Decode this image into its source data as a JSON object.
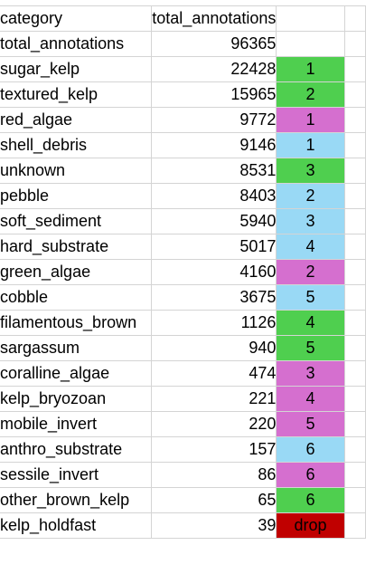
{
  "columns": {
    "category": "category",
    "total": "total_annotations"
  },
  "colors": {
    "green": "#4fcf4f",
    "blue": "#99d9f5",
    "pink": "#d56fcf",
    "red": "#c00000",
    "white": "#ffffff"
  },
  "rows": [
    {
      "category": "total_annotations",
      "total": "96365",
      "rank": "",
      "color": "white"
    },
    {
      "category": "sugar_kelp",
      "total": "22428",
      "rank": "1",
      "color": "green"
    },
    {
      "category": "textured_kelp",
      "total": "15965",
      "rank": "2",
      "color": "green"
    },
    {
      "category": "red_algae",
      "total": "9772",
      "rank": "1",
      "color": "pink"
    },
    {
      "category": "shell_debris",
      "total": "9146",
      "rank": "1",
      "color": "blue"
    },
    {
      "category": "unknown",
      "total": "8531",
      "rank": "3",
      "color": "green"
    },
    {
      "category": "pebble",
      "total": "8403",
      "rank": "2",
      "color": "blue"
    },
    {
      "category": "soft_sediment",
      "total": "5940",
      "rank": "3",
      "color": "blue"
    },
    {
      "category": "hard_substrate",
      "total": "5017",
      "rank": "4",
      "color": "blue"
    },
    {
      "category": "green_algae",
      "total": "4160",
      "rank": "2",
      "color": "pink"
    },
    {
      "category": "cobble",
      "total": "3675",
      "rank": "5",
      "color": "blue"
    },
    {
      "category": "filamentous_brown",
      "total": "1126",
      "rank": "4",
      "color": "green"
    },
    {
      "category": "sargassum",
      "total": "940",
      "rank": "5",
      "color": "green"
    },
    {
      "category": "coralline_algae",
      "total": "474",
      "rank": "3",
      "color": "pink"
    },
    {
      "category": "kelp_bryozoan",
      "total": "221",
      "rank": "4",
      "color": "pink"
    },
    {
      "category": "mobile_invert",
      "total": "220",
      "rank": "5",
      "color": "pink"
    },
    {
      "category": "anthro_substrate",
      "total": "157",
      "rank": "6",
      "color": "blue"
    },
    {
      "category": "sessile_invert",
      "total": "86",
      "rank": "6",
      "color": "pink"
    },
    {
      "category": "other_brown_kelp",
      "total": "65",
      "rank": "6",
      "color": "green"
    },
    {
      "category": "kelp_holdfast",
      "total": "39",
      "rank": "drop",
      "color": "red"
    }
  ]
}
